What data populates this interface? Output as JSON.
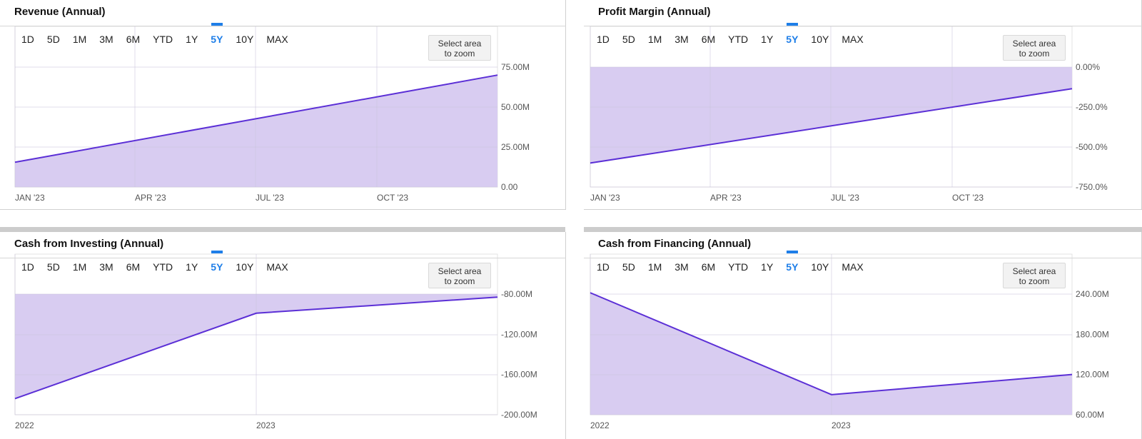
{
  "range_buttons": [
    "1D",
    "5D",
    "1M",
    "3M",
    "6M",
    "YTD",
    "1Y",
    "5Y",
    "10Y",
    "MAX"
  ],
  "active_range": "5Y",
  "zoom_label_line1": "Select area",
  "zoom_label_line2": "to zoom",
  "colors": {
    "line": "#5b2fd6",
    "fill": "#d8ccf1",
    "active": "#1e7ee8",
    "grid": "#e3e3e3"
  },
  "chart_data": [
    {
      "id": "revenue",
      "title": "Revenue (Annual)",
      "type": "area",
      "x_tick_labels": [
        "JAN '23",
        "APR '23",
        "JUL '23",
        "OCT '23"
      ],
      "y_tick_labels": [
        "75.00M",
        "50.00M",
        "25.00M",
        "0.00"
      ],
      "y_ticks": [
        75,
        50,
        25,
        0
      ],
      "ylim": [
        0,
        75
      ],
      "fill_to": "bottom",
      "series": [
        {
          "x": [
            "2023-01-01",
            "2024-01-01"
          ],
          "values": [
            15.5,
            70.0
          ]
        }
      ]
    },
    {
      "id": "profit-margin",
      "title": "Profit Margin (Annual)",
      "type": "area",
      "x_tick_labels": [
        "JAN '23",
        "APR '23",
        "JUL '23",
        "OCT '23"
      ],
      "y_tick_labels": [
        "0.00%",
        "-250.0%",
        "-500.0%",
        "-750.0%"
      ],
      "y_ticks": [
        0,
        -250,
        -500,
        -750
      ],
      "ylim": [
        -750,
        0
      ],
      "fill_to": "top",
      "series": [
        {
          "x": [
            "2023-01-01",
            "2024-01-01"
          ],
          "values": [
            -600,
            -135
          ]
        }
      ]
    },
    {
      "id": "cash-investing",
      "title": "Cash from Investing (Annual)",
      "type": "area",
      "x_tick_labels": [
        "2022",
        "2023"
      ],
      "y_tick_labels": [
        "-80.00M",
        "-120.00M",
        "-160.00M",
        "-200.00M"
      ],
      "y_ticks": [
        -80,
        -120,
        -160,
        -200
      ],
      "ylim": [
        -200,
        -80
      ],
      "fill_to": "top",
      "series": [
        {
          "x": [
            "2022",
            "2023",
            "2024"
          ],
          "values": [
            -184,
            -99,
            -83
          ]
        }
      ]
    },
    {
      "id": "cash-financing",
      "title": "Cash from Financing (Annual)",
      "type": "area",
      "x_tick_labels": [
        "2022",
        "2023"
      ],
      "y_tick_labels": [
        "240.00M",
        "180.00M",
        "120.00M",
        "60.00M"
      ],
      "y_ticks": [
        240,
        180,
        120,
        60
      ],
      "ylim": [
        60,
        240
      ],
      "fill_to": "bottom",
      "series": [
        {
          "x": [
            "2022",
            "2023",
            "2024"
          ],
          "values": [
            242,
            90,
            120
          ]
        }
      ]
    }
  ]
}
